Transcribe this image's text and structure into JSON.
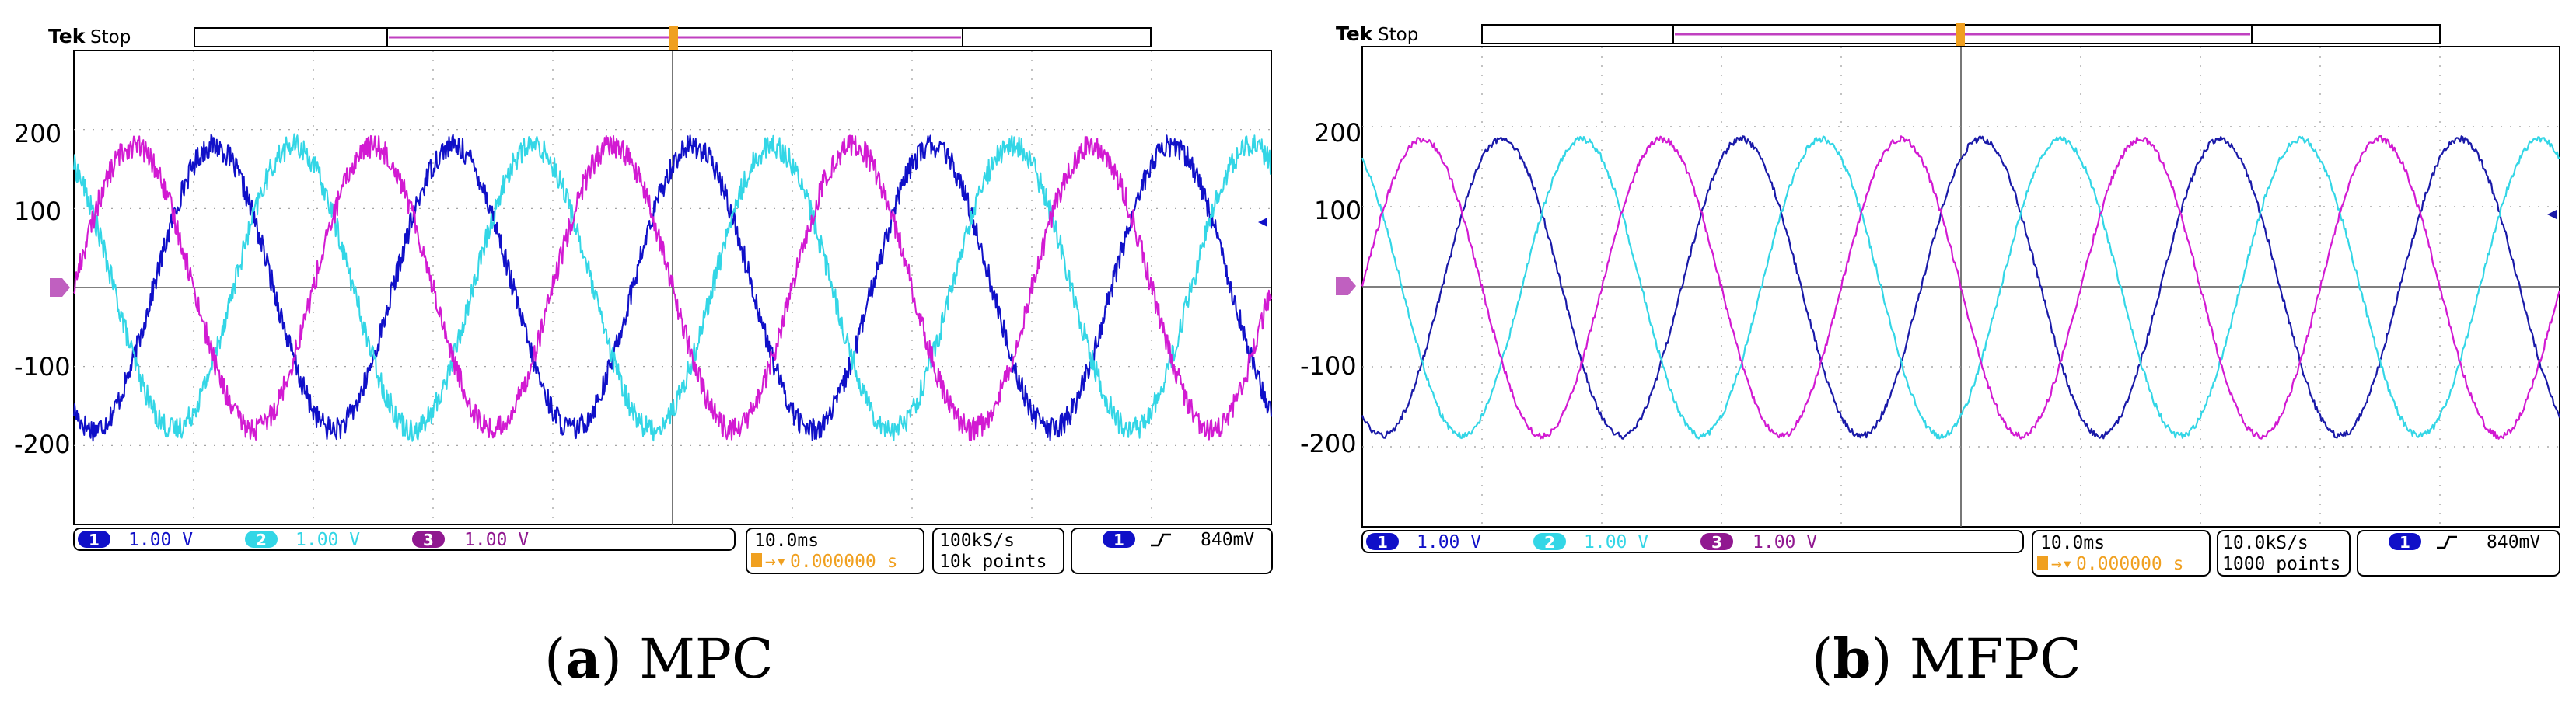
{
  "chart_data": [
    {
      "type": "line",
      "scope_state": {
        "brand": "Tek",
        "status": "Stop"
      },
      "caption": {
        "letter": "a",
        "method": "MPC"
      },
      "y_ticks": [
        "200",
        "100",
        "-100",
        "-200"
      ],
      "ylim": [
        -300,
        300
      ],
      "x_range_ms": [
        0,
        100
      ],
      "grid": true,
      "series": [
        {
          "channel": "1",
          "scale": "1.00 V",
          "color": "#1010c8",
          "amplitude": 190,
          "frequency_hz": 50,
          "phase_deg": 240
        },
        {
          "channel": "2",
          "scale": "1.00 V",
          "color": "#33d6e6",
          "amplitude": 190,
          "frequency_hz": 50,
          "phase_deg": 120
        },
        {
          "channel": "3",
          "scale": "1.00 V",
          "color": "#d21ad2",
          "amplitude": 190,
          "frequency_hz": 50,
          "phase_deg": 0
        }
      ],
      "noise_level": "high",
      "timebase": {
        "per_div": "10.0ms",
        "trigger_delay": "0.000000 s"
      },
      "acquisition": {
        "rate": "100kS/s",
        "points": "10k points"
      },
      "trigger": {
        "channel": "1",
        "level": "840mV"
      }
    },
    {
      "type": "line",
      "scope_state": {
        "brand": "Tek",
        "status": "Stop"
      },
      "caption": {
        "letter": "b",
        "method": "MFPC"
      },
      "y_ticks": [
        "200",
        "100",
        "-100",
        "-200"
      ],
      "ylim": [
        -300,
        300
      ],
      "x_range_ms": [
        0,
        100
      ],
      "grid": true,
      "series": [
        {
          "channel": "1",
          "scale": "1.00 V",
          "color": "#1a1aa8",
          "amplitude": 195,
          "frequency_hz": 50,
          "phase_deg": 240
        },
        {
          "channel": "2",
          "scale": "1.00 V",
          "color": "#33d6e6",
          "amplitude": 195,
          "frequency_hz": 50,
          "phase_deg": 120
        },
        {
          "channel": "3",
          "scale": "1.00 V",
          "color": "#d21ad2",
          "amplitude": 195,
          "frequency_hz": 50,
          "phase_deg": 0
        }
      ],
      "noise_level": "low",
      "timebase": {
        "per_div": "10.0ms",
        "trigger_delay": "0.000000 s"
      },
      "acquisition": {
        "rate": "10.0kS/s",
        "points": "1000 points"
      },
      "trigger": {
        "channel": "1",
        "level": "840mV"
      }
    }
  ]
}
